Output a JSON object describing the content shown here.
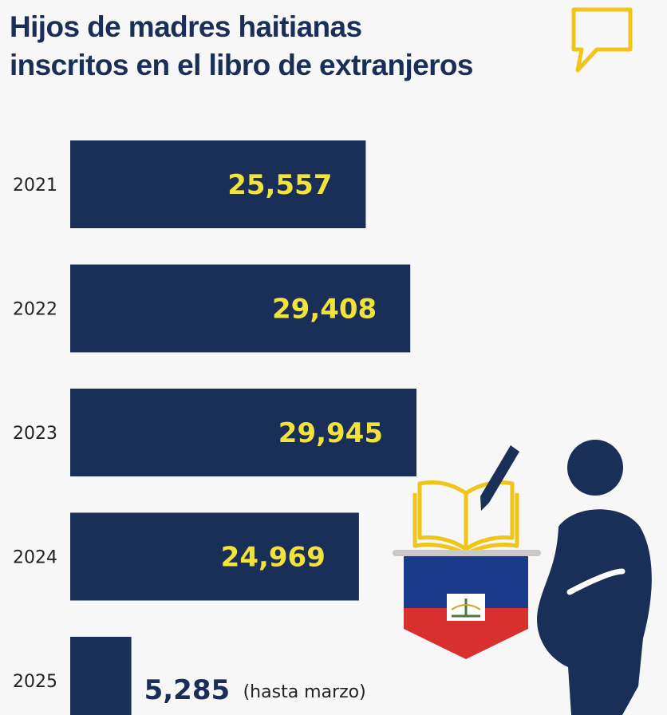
{
  "title_lines": [
    "Hijos de madres haitianas",
    "inscritos en el libro de extranjeros"
  ],
  "colors": {
    "bar": "#1a2f57",
    "value_label": "#f2e33a",
    "accent": "#f0c419",
    "flag_blue": "#1a3a8c",
    "flag_red": "#d8302e"
  },
  "icons": [
    "speech-bubble-icon",
    "book-icon",
    "pen-icon",
    "haiti-flag-banner-icon",
    "pregnant-woman-icon"
  ],
  "chart_data": {
    "type": "bar",
    "orientation": "horizontal",
    "categories": [
      "2021",
      "2022",
      "2023",
      "2024",
      "2025"
    ],
    "values": [
      25557,
      29408,
      29945,
      24969,
      5285
    ],
    "value_labels": [
      "25,557",
      "29,408",
      "29,945",
      "24,969",
      "5,285"
    ],
    "annotations": {
      "2025": "(hasta marzo)"
    },
    "title": "Hijos de madres haitianas inscritos en el libro de extranjeros",
    "xlabel": "",
    "ylabel": "",
    "grid": false,
    "legend": "none"
  }
}
